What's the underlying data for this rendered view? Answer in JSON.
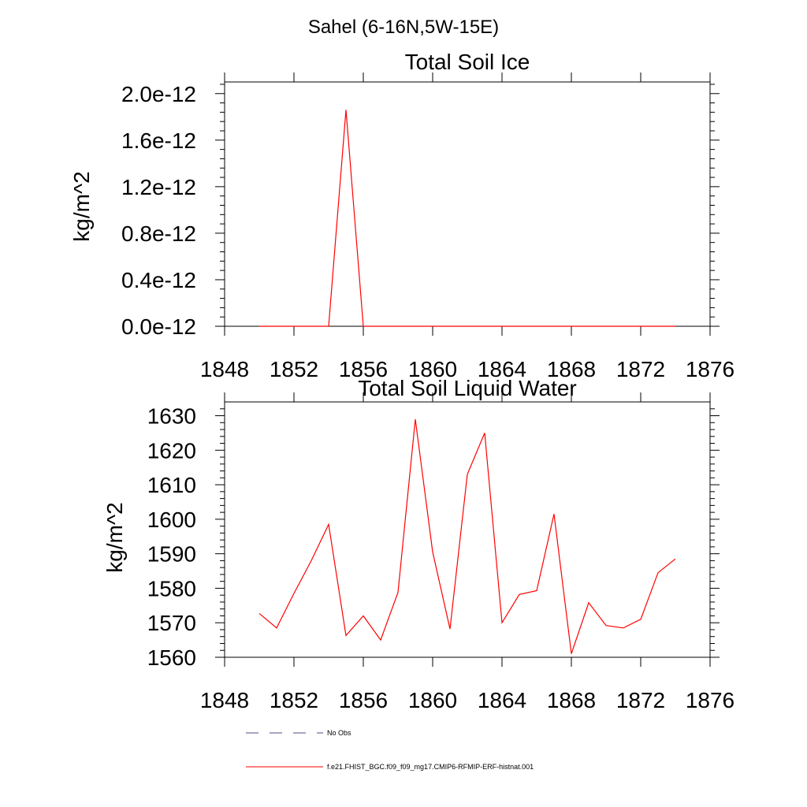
{
  "figure": {
    "title": "Sahel (6-16N,5W-15E)"
  },
  "chart_data": [
    {
      "type": "line",
      "title": "Total Soil Ice",
      "ylabel": "kg/m^2",
      "xlabel": "",
      "xlim": [
        1848,
        1876
      ],
      "ylim": [
        0,
        2.1e-12
      ],
      "xticks": [
        1848,
        1852,
        1856,
        1860,
        1864,
        1868,
        1872,
        1876
      ],
      "xtick_labels": [
        "1848",
        "1852",
        "1856",
        "1860",
        "1864",
        "1868",
        "1872",
        "1876"
      ],
      "yticks": [
        0,
        4e-13,
        8e-13,
        1.2e-12,
        1.6e-12,
        2e-12
      ],
      "ytick_labels": [
        "0.0e-12",
        "0.4e-12",
        "0.8e-12",
        "1.2e-12",
        "1.6e-12",
        "2.0e-12"
      ],
      "grid": false,
      "series": [
        {
          "color": "#ff0000",
          "x": [
            1850,
            1851,
            1852,
            1853,
            1854,
            1855,
            1856,
            1857,
            1858,
            1859,
            1860,
            1861,
            1862,
            1863,
            1864,
            1865,
            1866,
            1867,
            1868,
            1869,
            1870,
            1871,
            1872,
            1873,
            1874
          ],
          "y": [
            0,
            0,
            0,
            0,
            0,
            1.86e-12,
            0,
            0,
            0,
            0,
            0,
            0,
            0,
            0,
            0,
            0,
            0,
            0,
            0,
            0,
            0,
            0,
            0,
            0,
            0
          ]
        }
      ]
    },
    {
      "type": "line",
      "title": "Total Soil Liquid Water",
      "ylabel": "kg/m^2",
      "xlabel": "",
      "xlim": [
        1848,
        1876
      ],
      "ylim": [
        1560,
        1634
      ],
      "xticks": [
        1848,
        1852,
        1856,
        1860,
        1864,
        1868,
        1872,
        1876
      ],
      "xtick_labels": [
        "1848",
        "1852",
        "1856",
        "1860",
        "1864",
        "1868",
        "1872",
        "1876"
      ],
      "yticks": [
        1560,
        1570,
        1580,
        1590,
        1600,
        1610,
        1620,
        1630
      ],
      "ytick_labels": [
        "1560",
        "1570",
        "1580",
        "1590",
        "1600",
        "1610",
        "1620",
        "1630"
      ],
      "grid": false,
      "series": [
        {
          "color": "#ff0000",
          "x": [
            1850,
            1851,
            1852,
            1853,
            1854,
            1855,
            1856,
            1857,
            1858,
            1859,
            1860,
            1861,
            1862,
            1863,
            1864,
            1865,
            1866,
            1867,
            1868,
            1869,
            1870,
            1871,
            1872,
            1873,
            1874
          ],
          "y": [
            1572.7,
            1568.5,
            1578.5,
            1588.0,
            1598.5,
            1566.3,
            1572.0,
            1565.0,
            1578.8,
            1629.0,
            1590.5,
            1568.2,
            1613.0,
            1625.0,
            1570.0,
            1578.2,
            1579.3,
            1601.5,
            1561.0,
            1575.8,
            1569.2,
            1568.5,
            1571.0,
            1584.5,
            1588.5
          ]
        }
      ]
    }
  ],
  "legend": {
    "placement": "bottom",
    "entries": [
      {
        "label": "No Obs",
        "color": "#4a4a8a",
        "style": "dashed"
      },
      {
        "label": "f.e21.FHIST_BGC.f09_f09_mg17.CMIP6-RFMIP-ERF-histnat.001",
        "color": "#ff0000",
        "style": "solid"
      }
    ]
  }
}
